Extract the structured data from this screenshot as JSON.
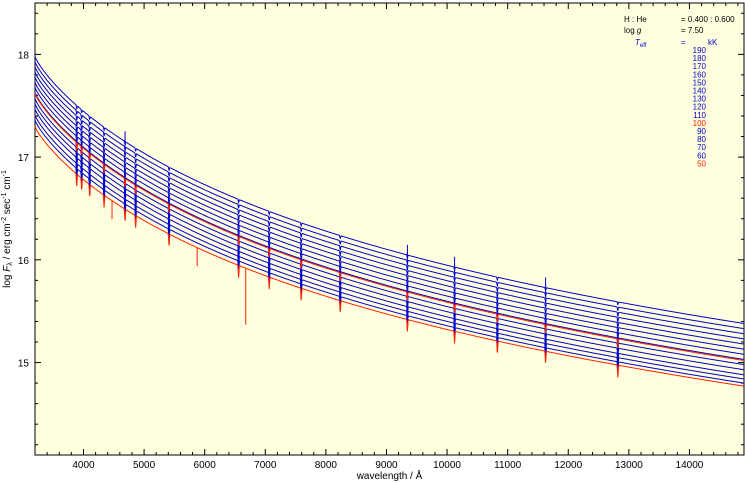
{
  "chart_data": {
    "type": "line",
    "xlabel": "wavelength / Å",
    "ylabel_parts": {
      "prefix": "log ",
      "var": "F",
      "sub": "λ",
      "units": " / erg cm",
      "exp1": "-2",
      "units2": " sec",
      "exp2": "-1",
      "units3": " cm",
      "exp3": "-1"
    },
    "xlim": [
      3200,
      14900
    ],
    "ylim": [
      14.1,
      18.5
    ],
    "xticks": [
      4000,
      5000,
      6000,
      7000,
      8000,
      9000,
      10000,
      11000,
      12000,
      13000,
      14000
    ],
    "xtick_labels": [
      "4000",
      "5000",
      "6000",
      "7000",
      "8000",
      "9000",
      "10000",
      "11000",
      "12000",
      "13000",
      "14000"
    ],
    "yticks": [
      15,
      16,
      17,
      18
    ],
    "ytick_labels": [
      "15",
      "16",
      "17",
      "18"
    ],
    "background_color": "#ffffe0",
    "legend": {
      "position": "top-right",
      "composition_label": "H : He",
      "composition_value": "= 0.400 : 0.600",
      "logg_label_prefix": "log ",
      "logg_label_var": "g",
      "logg_value": "= 7.50",
      "teff_label_var": "T",
      "teff_label_sub": "eff",
      "teff_dash": "=",
      "teff_unit": "kK"
    },
    "series": [
      {
        "teff": "190",
        "color": "#0000cc",
        "y_start": 17.98,
        "y_end": 15.38
      },
      {
        "teff": "180",
        "color": "#0000cc",
        "y_start": 17.93,
        "y_end": 15.33
      },
      {
        "teff": "170",
        "color": "#0000cc",
        "y_start": 17.88,
        "y_end": 15.28
      },
      {
        "teff": "160",
        "color": "#0000cc",
        "y_start": 17.83,
        "y_end": 15.23
      },
      {
        "teff": "150",
        "color": "#0000cc",
        "y_start": 17.78,
        "y_end": 15.18
      },
      {
        "teff": "140",
        "color": "#0000cc",
        "y_start": 17.73,
        "y_end": 15.13
      },
      {
        "teff": "130",
        "color": "#0000cc",
        "y_start": 17.68,
        "y_end": 15.08
      },
      {
        "teff": "120",
        "color": "#0000cc",
        "y_start": 17.63,
        "y_end": 15.03
      },
      {
        "teff": "110",
        "color": "#0000cc",
        "y_start": 17.57,
        "y_end": 14.98
      },
      {
        "teff": "100",
        "color": "#ff2200",
        "y_start": 17.62,
        "y_end": 15.02
      },
      {
        "teff": "90",
        "color": "#0000cc",
        "y_start": 17.52,
        "y_end": 14.93
      },
      {
        "teff": "80",
        "color": "#0000cc",
        "y_start": 17.47,
        "y_end": 14.88
      },
      {
        "teff": "70",
        "color": "#0000cc",
        "y_start": 17.41,
        "y_end": 14.84
      },
      {
        "teff": "60",
        "color": "#0000cc",
        "y_start": 17.36,
        "y_end": 14.8
      },
      {
        "teff": "50",
        "color": "#ff2200",
        "y_start": 17.3,
        "y_end": 14.77
      }
    ],
    "absorption_lines_angstrom": [
      3889,
      3970,
      4102,
      4340,
      4686,
      4861,
      5412,
      6560,
      7065,
      7593,
      8237,
      9345,
      10124,
      10830,
      11626,
      12818
    ]
  }
}
